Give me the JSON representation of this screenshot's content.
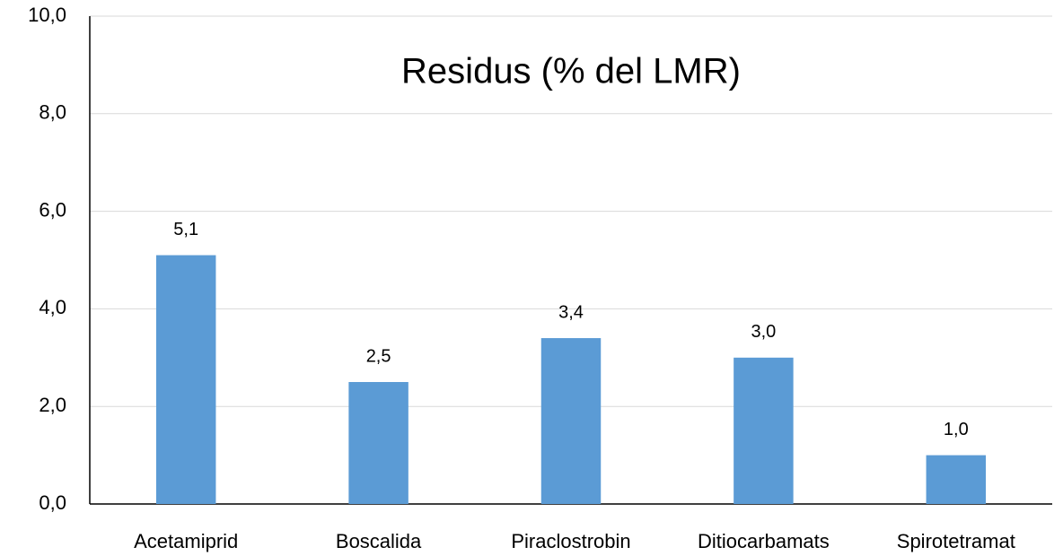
{
  "chart_data": {
    "type": "bar",
    "title": "Residus (% del LMR)",
    "categories": [
      "Acetamiprid",
      "Boscalida",
      "Piraclostrobin",
      "Ditiocarbamats",
      "Spirotetramat"
    ],
    "values": [
      5.1,
      2.5,
      3.4,
      3.0,
      1.0
    ],
    "value_labels": [
      "5,1",
      "2,5",
      "3,4",
      "3,0",
      "1,0"
    ],
    "color": "#5b9bd5",
    "ylim": [
      0,
      10
    ],
    "yticks": [
      {
        "value": 0,
        "label": "0,0"
      },
      {
        "value": 2,
        "label": "2,0"
      },
      {
        "value": 4,
        "label": "4,0"
      },
      {
        "value": 6,
        "label": "6,0"
      },
      {
        "value": 8,
        "label": "8,0"
      },
      {
        "value": 10,
        "label": "10,0"
      }
    ],
    "grid": true
  }
}
